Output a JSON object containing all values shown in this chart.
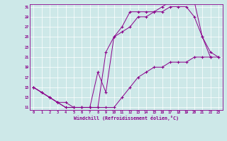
{
  "xlabel": "Windchill (Refroidissement éolien,°C)",
  "bg_color": "#cde8e8",
  "line_color": "#8b008b",
  "grid_color": "#b0d0d0",
  "xmin": 0,
  "xmax": 23,
  "ymin": 11,
  "ymax": 31,
  "yticks": [
    11,
    13,
    15,
    17,
    19,
    21,
    23,
    25,
    27,
    29,
    31
  ],
  "xticks": [
    0,
    1,
    2,
    3,
    4,
    5,
    6,
    7,
    8,
    9,
    10,
    11,
    12,
    13,
    14,
    15,
    16,
    17,
    18,
    19,
    20,
    21,
    22,
    23
  ],
  "line1_x": [
    0,
    1,
    2,
    3,
    4,
    5,
    6,
    7,
    8,
    9,
    10,
    11,
    12,
    13,
    14,
    15,
    16,
    17,
    18,
    19,
    20,
    21,
    22
  ],
  "line1_y": [
    15,
    14,
    13,
    12,
    11,
    11,
    11,
    11,
    18,
    14,
    25,
    27,
    30,
    30,
    30,
    30,
    31,
    32,
    32,
    32,
    32,
    25,
    21
  ],
  "line2_x": [
    0,
    1,
    2,
    3,
    4,
    5,
    6,
    7,
    8,
    9,
    10,
    11,
    12,
    13,
    14,
    15,
    16,
    17,
    18,
    19,
    20,
    21,
    22,
    23
  ],
  "line2_y": [
    15,
    14,
    13,
    12,
    11,
    11,
    11,
    11,
    11,
    11,
    11,
    13,
    15,
    17,
    18,
    19,
    19,
    20,
    20,
    20,
    21,
    21,
    21,
    21
  ],
  "line3_x": [
    0,
    2,
    3,
    4,
    5,
    6,
    7,
    8,
    9,
    10,
    11,
    12,
    13,
    14,
    15,
    16,
    17,
    18,
    19,
    20,
    21,
    22,
    23
  ],
  "line3_y": [
    15,
    13,
    12,
    12,
    11,
    11,
    11,
    11,
    22,
    25,
    26,
    27,
    29,
    29,
    30,
    30,
    31,
    31,
    31,
    29,
    25,
    22,
    21
  ]
}
